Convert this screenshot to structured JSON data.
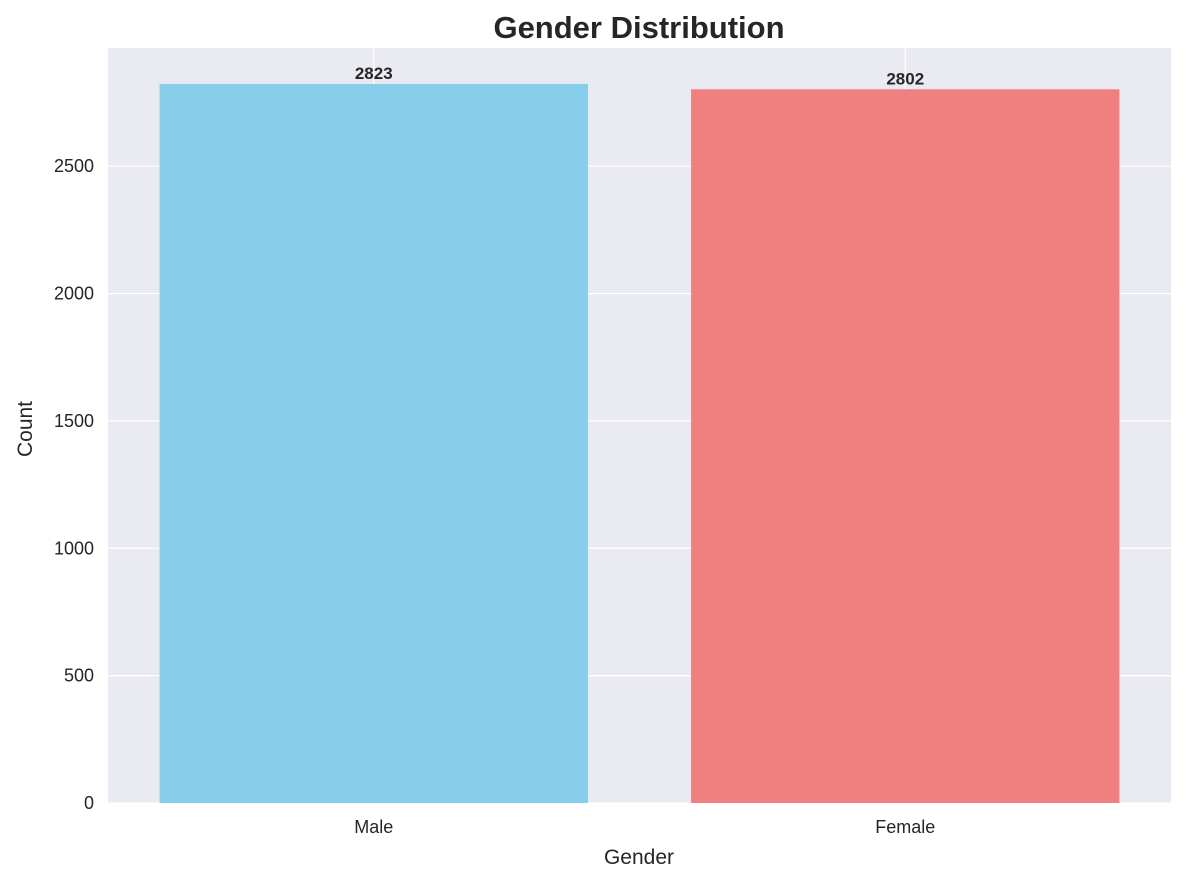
{
  "chart_data": {
    "type": "bar",
    "title": "Gender Distribution",
    "xlabel": "Gender",
    "ylabel": "Count",
    "categories": [
      "Male",
      "Female"
    ],
    "values": [
      2823,
      2802
    ],
    "data_labels": [
      "2823",
      "2802"
    ],
    "bar_colors": [
      "#87ceeb",
      "#f08080"
    ],
    "ylim": [
      0,
      2964
    ],
    "yticks": [
      0,
      500,
      1000,
      1500,
      2000,
      2500
    ],
    "ytick_labels": [
      "0",
      "500",
      "1000",
      "1500",
      "2000",
      "2500"
    ],
    "grid": true,
    "legend": "none",
    "background_color": "#eaeaf2",
    "grid_color": "#ffffff"
  }
}
